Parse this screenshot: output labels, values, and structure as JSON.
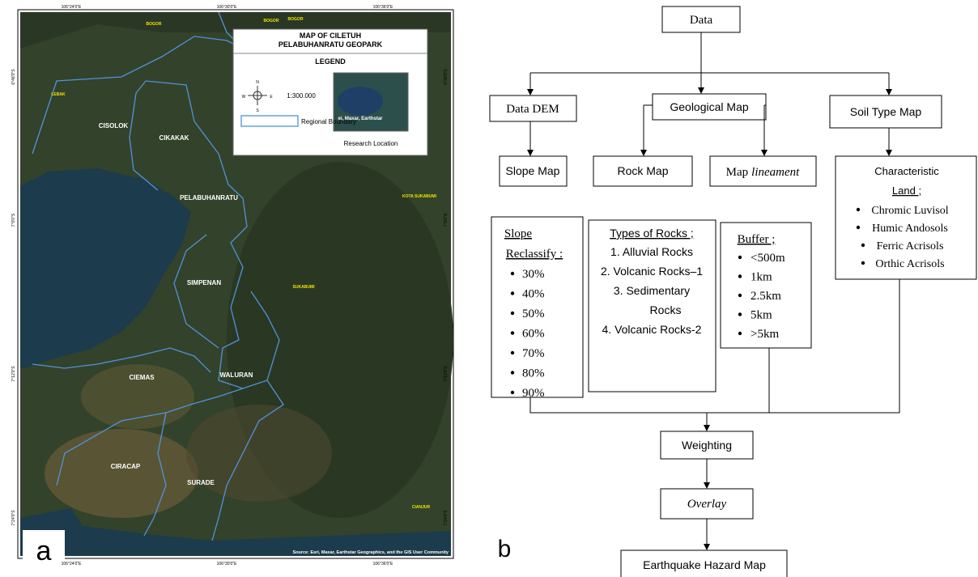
{
  "map": {
    "panel_label": "a",
    "title_lines": [
      "MAP OF CILETUH",
      "PELABUHANRATU GEOPARK"
    ],
    "legend_title": "LEGEND",
    "scale": "1:300.000",
    "compass": [
      "N",
      "E",
      "S",
      "W"
    ],
    "boundary_label": "Regional Boundary",
    "inset_text": "ei, Maxar, Earthstar",
    "inset_caption": "Research Location",
    "source": "Source: Esri, Maxar, Earthstar Geographics, and the GIS User Community",
    "x_coords": [
      "106°24'0\"E",
      "106°30'0\"E",
      "106°36'0\"E"
    ],
    "y_coords": [
      "6°48'0\"S",
      "7°0'0\"S",
      "7°12'0\"S",
      "7°24'0\"S"
    ],
    "places": [
      "BOGOR",
      "BOGOR",
      "BOGOR",
      "LEBAK",
      "KOTA SUKABUMI",
      "SUKABUMI",
      "CIANJUR"
    ],
    "regions": [
      "CISOLOK",
      "CIKAKAK",
      "PELABUHANRATU",
      "SIMPENAN",
      "CIEMAS",
      "WALURAN",
      "CIRACAP",
      "SURADE"
    ]
  },
  "flowchart": {
    "panel_label": "b",
    "data": "Data",
    "dem": "Data DEM",
    "geo": "Geological Map",
    "soil": "Soil Type Map",
    "slope": "Slope Map",
    "rock": "Rock Map",
    "lineament": [
      "Map",
      "lineament"
    ],
    "reclassify": {
      "title_lines": [
        "Slope",
        "Reclassify :"
      ],
      "items": [
        "30%",
        "40%",
        "50%",
        "60%",
        "70%",
        "80%",
        "90%"
      ]
    },
    "rocks": {
      "title": "Types of Rocks ;",
      "items": [
        [
          "1.  Alluvial Rocks"
        ],
        [
          "2.  Volcanic Rocks–1"
        ],
        [
          "3.  Sedimentary",
          "Rocks"
        ],
        [
          "4.  Volcanic Rocks-2"
        ]
      ]
    },
    "buffer": {
      "title": "Buffer ;",
      "items": [
        "<500m",
        "1km",
        "2.5km",
        "5km",
        ">5km"
      ]
    },
    "land": {
      "title_lines": [
        "Characteristic",
        "Land ;"
      ],
      "items": [
        "Chromic Luvisol",
        "Humic Andosols",
        "Ferric Acrisols",
        "Orthic Acrisols"
      ]
    },
    "weighting": "Weighting",
    "overlay": "Overlay",
    "output": "Earthquake Hazard Map"
  }
}
